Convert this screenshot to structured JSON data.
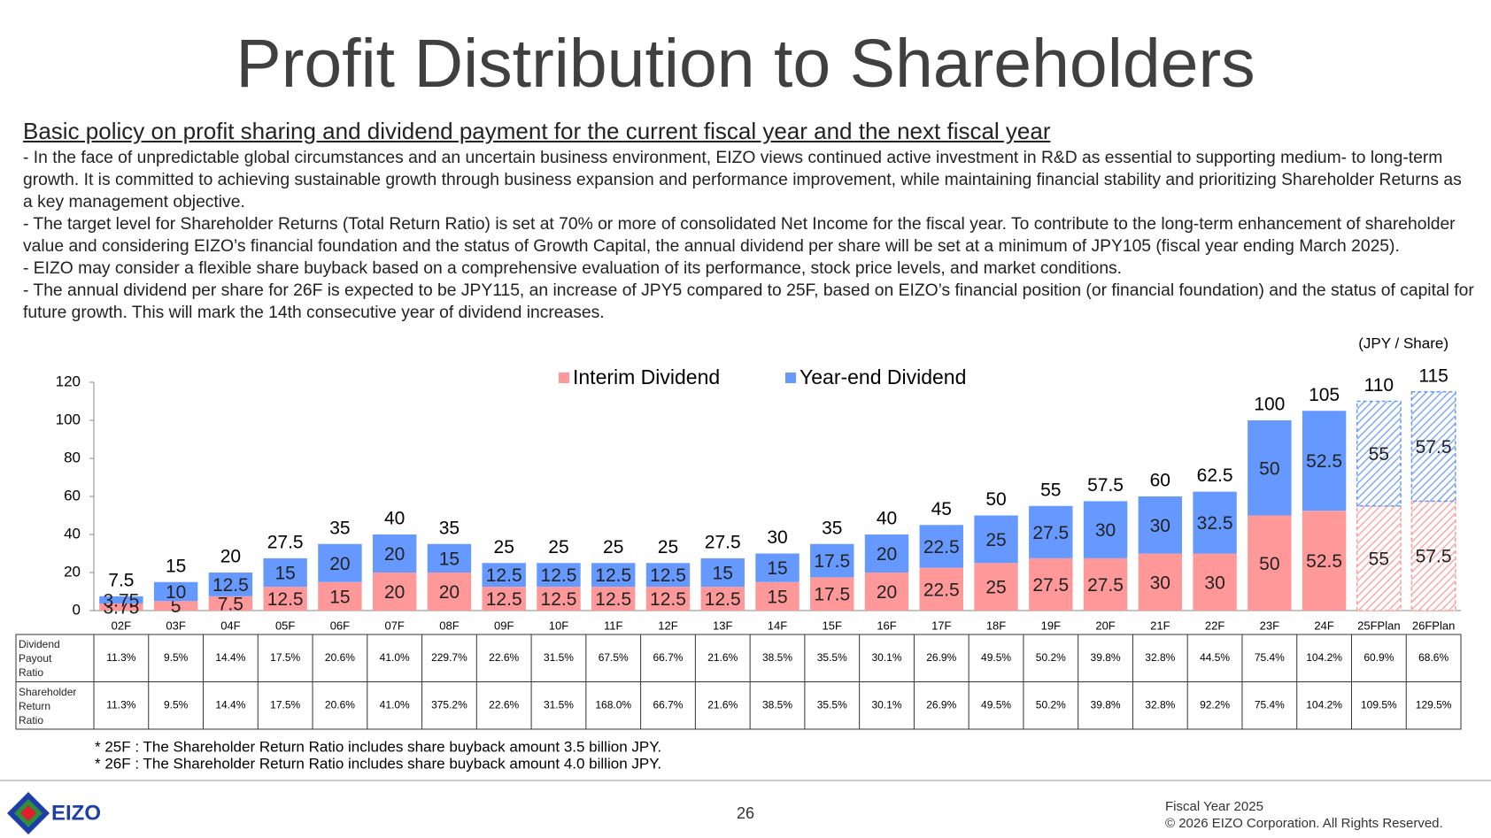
{
  "title": "Profit Distribution to Shareholders",
  "policy": {
    "heading": "Basic policy on profit sharing and dividend payment for the current fiscal year and the next fiscal year",
    "paragraphs": [
      "- In the face of unpredictable global circumstances and an uncertain business environment, EIZO views continued active investment in R&D as essential to supporting medium- to long-term growth. It is committed to achieving sustainable growth through business expansion and performance improvement, while maintaining financial stability and prioritizing Shareholder Returns as a key management objective.",
      "- The target level for Shareholder Returns (Total Return Ratio) is set at 70% or more of consolidated Net Income for the fiscal year. To contribute to the long-term enhancement of shareholder value and considering EIZO’s financial foundation and the status of Growth Capital, the annual dividend per share will be set at a minimum of JPY105 (fiscal year ending March 2025).",
      "- EIZO may consider a flexible share buyback based on a comprehensive evaluation of its performance, stock price levels, and market conditions.",
      "- The annual dividend per share for 26F is expected to be JPY115, an increase of JPY5 compared to 25F, based on EIZO’s financial position (or financial foundation) and the status of capital for future growth. This will mark the 14th consecutive year of dividend increases."
    ]
  },
  "chart_data": {
    "type": "stacked_bar",
    "unit": "(JPY / Share)",
    "categories": [
      "02F",
      "03F",
      "04F",
      "05F",
      "06F",
      "07F",
      "08F",
      "09F",
      "10F",
      "11F",
      "12F",
      "13F",
      "14F",
      "15F",
      "16F",
      "17F",
      "18F",
      "19F",
      "20F",
      "21F",
      "22F",
      "23F",
      "24F",
      "25FPlan",
      "26FPlan"
    ],
    "series": [
      {
        "name": "Interim Dividend",
        "color": "#ff9999",
        "values": [
          3.75,
          5,
          7.5,
          12.5,
          15,
          20,
          20,
          12.5,
          12.5,
          12.5,
          12.5,
          12.5,
          15,
          17.5,
          20,
          22.5,
          25,
          27.5,
          27.5,
          30,
          30,
          50,
          52.5,
          55,
          57.5
        ]
      },
      {
        "name": "Year-end Dividend",
        "color": "#6699ff",
        "values": [
          3.75,
          10,
          12.5,
          15,
          20,
          20,
          15,
          12.5,
          12.5,
          12.5,
          12.5,
          15,
          15,
          17.5,
          20,
          22.5,
          25,
          27.5,
          30,
          30,
          32.5,
          50,
          52.5,
          55,
          57.5
        ]
      }
    ],
    "totals": [
      7.5,
      15,
      20,
      27.5,
      35,
      40,
      35,
      25,
      25,
      25,
      25,
      27.5,
      30,
      35,
      40,
      45,
      50,
      55,
      57.5,
      60,
      62.5,
      100,
      105,
      110,
      115
    ],
    "hatched": [
      false,
      false,
      false,
      false,
      false,
      false,
      false,
      false,
      false,
      false,
      false,
      false,
      false,
      false,
      false,
      false,
      false,
      false,
      false,
      false,
      false,
      false,
      false,
      true,
      true
    ],
    "ylim": [
      0,
      120
    ],
    "yticks": [
      0,
      20,
      40,
      60,
      80,
      100,
      120
    ],
    "grid": false,
    "legend": "top"
  },
  "table": {
    "rows": [
      {
        "label": "Dividend Payout Ratio",
        "values": [
          "11.3%",
          "9.5%",
          "14.4%",
          "17.5%",
          "20.6%",
          "41.0%",
          "229.7%",
          "22.6%",
          "31.5%",
          "67.5%",
          "66.7%",
          "21.6%",
          "38.5%",
          "35.5%",
          "30.1%",
          "26.9%",
          "49.5%",
          "50.2%",
          "39.8%",
          "32.8%",
          "44.5%",
          "75.4%",
          "104.2%",
          "60.9%",
          "68.6%"
        ]
      },
      {
        "label": "Shareholder Return Ratio",
        "values": [
          "11.3%",
          "9.5%",
          "14.4%",
          "17.5%",
          "20.6%",
          "41.0%",
          "375.2%",
          "22.6%",
          "31.5%",
          "168.0%",
          "66.7%",
          "21.6%",
          "38.5%",
          "35.5%",
          "30.1%",
          "26.9%",
          "49.5%",
          "50.2%",
          "39.8%",
          "32.8%",
          "92.2%",
          "75.4%",
          "104.2%",
          "109.5%",
          "129.5%"
        ]
      }
    ]
  },
  "notes": [
    "* 25F : The Shareholder Return Ratio includes share buyback amount 3.5 billion JPY.",
    "* 26F : The Shareholder Return Ratio includes share buyback amount 4.0 billion JPY."
  ],
  "footer": {
    "logo": "EIZO",
    "page": "26",
    "fiscal_year": "Fiscal Year 2025",
    "copyright": "© 2026 EIZO Corporation. All Rights Reserved."
  }
}
